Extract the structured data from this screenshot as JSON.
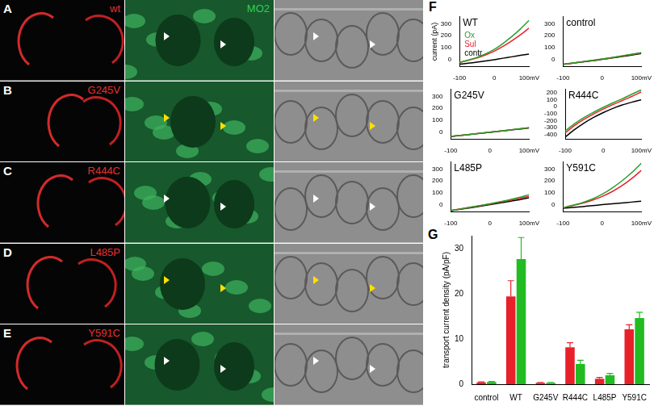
{
  "image_panels": {
    "rows": [
      {
        "letter": "A",
        "texts": [
          {
            "text": "wt",
            "color": "#e53030"
          },
          {
            "text": "MO2",
            "color": "#33cc55"
          }
        ]
      },
      {
        "letter": "B",
        "texts": [
          {
            "text": "G245V",
            "color": "#e53030"
          }
        ]
      },
      {
        "letter": "C",
        "texts": [
          {
            "text": "R444C",
            "color": "#e53030"
          }
        ]
      },
      {
        "letter": "D",
        "texts": [
          {
            "text": "L485P",
            "color": "#e53030"
          }
        ]
      },
      {
        "letter": "E",
        "texts": [
          {
            "text": "Y591C",
            "color": "#e53030"
          }
        ]
      }
    ]
  },
  "chart_panel_letters": [
    "F",
    "G"
  ],
  "chart_data": [
    {
      "type": "line",
      "title": "WT",
      "ylabel": "current (pA)",
      "x": [
        -100,
        -75,
        -50,
        -25,
        0,
        25,
        50,
        75,
        100
      ],
      "xlim": [
        -100,
        100
      ],
      "xticks": [
        -100,
        0,
        {
          "value": 100,
          "label": "100mV"
        }
      ],
      "ylim": [
        -60,
        360
      ],
      "yticks": [
        0,
        100,
        200,
        300
      ],
      "grid": false,
      "legend": "upper left",
      "series": [
        {
          "name": "Ox",
          "color": "#2aa02a",
          "values": [
            -25,
            -6,
            17,
            47,
            85,
            135,
            192,
            257,
            330
          ]
        },
        {
          "name": "Sul",
          "color": "#e8202a",
          "values": [
            -25,
            -8,
            12,
            38,
            70,
            110,
            157,
            208,
            265
          ]
        },
        {
          "name": "contr",
          "color": "#000000",
          "values": [
            -40,
            -32,
            -23,
            -13,
            -2,
            10,
            22,
            34,
            45
          ]
        }
      ]
    },
    {
      "type": "line",
      "title": "control",
      "x": [
        -100,
        -75,
        -50,
        -25,
        0,
        25,
        50,
        75,
        100
      ],
      "xlim": [
        -100,
        100
      ],
      "xticks": [
        -100,
        0,
        {
          "value": 100,
          "label": "100mV"
        }
      ],
      "ylim": [
        -60,
        360
      ],
      "yticks": [
        0,
        100,
        200,
        300
      ],
      "grid": false,
      "series": [
        {
          "name": "Ox",
          "color": "#2aa02a",
          "values": [
            -41,
            -30,
            -19,
            -8,
            4,
            16,
            29,
            43,
            57
          ]
        },
        {
          "name": "Sul",
          "color": "#e8202a",
          "values": [
            -42,
            -31,
            -20,
            -9,
            3,
            15,
            28,
            41,
            55
          ]
        },
        {
          "name": "contr",
          "color": "#000000",
          "values": [
            -42,
            -32,
            -22,
            -11,
            0,
            12,
            24,
            37,
            50
          ]
        }
      ]
    },
    {
      "type": "line",
      "title": "G245V",
      "x": [
        -100,
        -75,
        -50,
        -25,
        0,
        25,
        50,
        75,
        100
      ],
      "xlim": [
        -100,
        100
      ],
      "xticks": [
        -100,
        0,
        {
          "value": 100,
          "label": "100mV"
        }
      ],
      "ylim": [
        -60,
        360
      ],
      "yticks": [
        0,
        100,
        200,
        300
      ],
      "grid": false,
      "series": [
        {
          "name": "Ox",
          "color": "#2aa02a",
          "values": [
            -37,
            -28,
            -19,
            -10,
            -1,
            8,
            18,
            28,
            37
          ]
        },
        {
          "name": "Sul",
          "color": "#e8202a",
          "values": [
            -37,
            -28,
            -19,
            -10,
            -1,
            8,
            17,
            27,
            36
          ]
        },
        {
          "name": "contr",
          "color": "#000000",
          "values": [
            -38,
            -29,
            -20,
            -11,
            -2,
            7,
            16,
            25,
            34
          ]
        }
      ]
    },
    {
      "type": "line",
      "title": "R444C",
      "x": [
        -100,
        -75,
        -50,
        -25,
        0,
        25,
        50,
        75,
        100
      ],
      "xlim": [
        -100,
        100
      ],
      "xticks": [
        -100,
        0,
        {
          "value": 100,
          "label": "100mV"
        }
      ],
      "ylim": [
        -470,
        250
      ],
      "yticks": [
        -400,
        -300,
        -200,
        -100,
        0,
        100,
        200
      ],
      "grid": false,
      "series": [
        {
          "name": "Ox",
          "color": "#2aa02a",
          "values": [
            -350,
            -245,
            -155,
            -80,
            -10,
            55,
            115,
            180,
            245
          ]
        },
        {
          "name": "Sul",
          "color": "#e8202a",
          "values": [
            -380,
            -270,
            -180,
            -105,
            -35,
            30,
            90,
            150,
            215
          ]
        },
        {
          "name": "contr",
          "color": "#000000",
          "values": [
            -440,
            -330,
            -235,
            -155,
            -85,
            -25,
            25,
            65,
            100
          ]
        }
      ]
    },
    {
      "type": "line",
      "title": "L485P",
      "x": [
        -100,
        -75,
        -50,
        -25,
        0,
        25,
        50,
        75,
        100
      ],
      "xlim": [
        -100,
        100
      ],
      "xticks": [
        -100,
        0,
        {
          "value": 100,
          "label": "100mV"
        }
      ],
      "ylim": [
        -60,
        360
      ],
      "yticks": [
        0,
        100,
        200,
        300
      ],
      "grid": false,
      "series": [
        {
          "name": "Ox",
          "color": "#2aa02a",
          "values": [
            -50,
            -36,
            -22,
            -7,
            8,
            25,
            42,
            62,
            85
          ]
        },
        {
          "name": "Sul",
          "color": "#e8202a",
          "values": [
            -48,
            -35,
            -22,
            -8,
            6,
            21,
            37,
            53,
            70
          ]
        },
        {
          "name": "contr",
          "color": "#000000",
          "values": [
            -50,
            -38,
            -26,
            -13,
            0,
            14,
            28,
            42,
            58
          ]
        }
      ]
    },
    {
      "type": "line",
      "title": "Y591C",
      "x": [
        -100,
        -75,
        -50,
        -25,
        0,
        25,
        50,
        75,
        100
      ],
      "xlim": [
        -100,
        100
      ],
      "xticks": [
        -100,
        0,
        {
          "value": 100,
          "label": "100mV"
        }
      ],
      "ylim": [
        -60,
        360
      ],
      "yticks": [
        0,
        100,
        200,
        300
      ],
      "grid": false,
      "series": [
        {
          "name": "Ox",
          "color": "#2aa02a",
          "values": [
            -25,
            -5,
            18,
            48,
            88,
            140,
            200,
            270,
            350
          ]
        },
        {
          "name": "Sul",
          "color": "#e8202a",
          "values": [
            -25,
            -8,
            12,
            38,
            70,
            110,
            160,
            220,
            290
          ]
        },
        {
          "name": "contr",
          "color": "#000000",
          "values": [
            -30,
            -23,
            -16,
            -8,
            0,
            8,
            15,
            22,
            30
          ]
        }
      ]
    },
    {
      "type": "bar",
      "ylabel": "transport current density (pA/pF)",
      "categories": [
        "control",
        "WT",
        "G245V",
        "R444C",
        "L485P",
        "Y591C"
      ],
      "ylim": [
        0,
        33
      ],
      "yticks": [
        0,
        10,
        20,
        30
      ],
      "grid": false,
      "series": [
        {
          "name": "Sul",
          "color": "#e8202a",
          "values": [
            0.4,
            19.5,
            0.3,
            8.2,
            1.2,
            12.2
          ],
          "errors": [
            0.1,
            3.5,
            0.1,
            1.0,
            0.3,
            1.0
          ]
        },
        {
          "name": "Ox",
          "color": "#22bb22",
          "values": [
            0.5,
            27.8,
            0.3,
            4.5,
            2.0,
            14.7
          ],
          "errors": [
            0.1,
            4.8,
            0.1,
            0.8,
            0.4,
            1.3
          ]
        }
      ]
    }
  ]
}
